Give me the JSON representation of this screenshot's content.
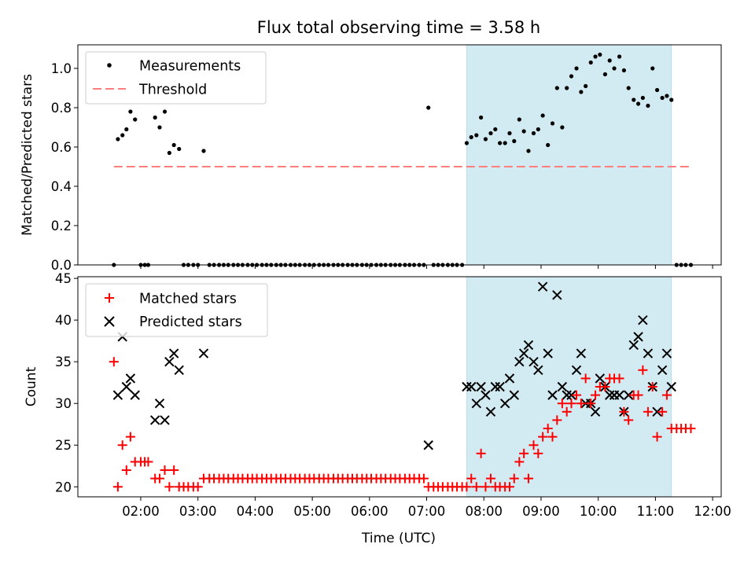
{
  "title": "Flux total observing time = 3.58 h",
  "colors": {
    "shade": "#add8e6",
    "matched": "#ff0000",
    "predicted": "#000000",
    "threshold": "#ff7f7f",
    "measure": "#000000"
  },
  "chart_data": [
    {
      "type": "scatter",
      "title": "Flux total observing time = 3.58 h",
      "xlabel": "",
      "ylabel": "Matched/Predicted stars",
      "ylim": [
        0,
        1.12
      ],
      "yticks": [
        "0.0",
        "0.2",
        "0.4",
        "0.6",
        "0.8",
        "1.0"
      ],
      "legend": [
        "Measurements",
        "Threshold"
      ],
      "legend_position": "upper left",
      "threshold": {
        "name": "Threshold",
        "value": 0.5,
        "x_range": [
          1.53,
          11.63
        ]
      },
      "shaded_region": [
        7.7,
        11.28
      ],
      "series": [
        {
          "name": "Measurements",
          "x": [
            1.53,
            1.6,
            1.68,
            1.75,
            1.82,
            1.9,
            2.0,
            2.07,
            2.13,
            2.25,
            2.33,
            2.42,
            2.5,
            2.58,
            2.67,
            2.75,
            2.83,
            2.92,
            3.0,
            3.1,
            3.2,
            3.28,
            3.37,
            3.45,
            3.53,
            3.62,
            3.7,
            3.78,
            3.87,
            3.95,
            4.03,
            4.12,
            4.2,
            4.28,
            4.37,
            4.45,
            4.53,
            4.62,
            4.7,
            4.78,
            4.87,
            4.95,
            5.03,
            5.12,
            5.2,
            5.28,
            5.37,
            5.45,
            5.53,
            5.62,
            5.7,
            5.78,
            5.87,
            5.95,
            6.03,
            6.12,
            6.2,
            6.28,
            6.37,
            6.45,
            6.53,
            6.62,
            6.7,
            6.78,
            6.87,
            6.95,
            7.03,
            7.12,
            7.2,
            7.28,
            7.37,
            7.45,
            7.53,
            7.62,
            7.7,
            7.78,
            7.87,
            7.95,
            8.03,
            8.12,
            8.2,
            8.28,
            8.37,
            8.45,
            8.53,
            8.62,
            8.7,
            8.78,
            8.87,
            8.95,
            9.03,
            9.12,
            9.2,
            9.28,
            9.37,
            9.45,
            9.53,
            9.62,
            9.7,
            9.78,
            9.87,
            9.95,
            10.03,
            10.12,
            10.2,
            10.28,
            10.37,
            10.45,
            10.53,
            10.62,
            10.7,
            10.78,
            10.87,
            10.95,
            11.03,
            11.12,
            11.2,
            11.28,
            11.37,
            11.45,
            11.53,
            11.62
          ],
          "y": [
            0.0,
            0.64,
            0.66,
            0.69,
            0.78,
            0.74,
            0.0,
            0.0,
            0.0,
            0.75,
            0.7,
            0.78,
            0.57,
            0.61,
            0.59,
            0.0,
            0.0,
            0.0,
            0.0,
            0.58,
            0.0,
            0.0,
            0.0,
            0.0,
            0.0,
            0.0,
            0.0,
            0.0,
            0.0,
            0.0,
            0.0,
            0.0,
            0.0,
            0.0,
            0.0,
            0.0,
            0.0,
            0.0,
            0.0,
            0.0,
            0.0,
            0.0,
            0.0,
            0.0,
            0.0,
            0.0,
            0.0,
            0.0,
            0.0,
            0.0,
            0.0,
            0.0,
            0.0,
            0.0,
            0.0,
            0.0,
            0.0,
            0.0,
            0.0,
            0.0,
            0.0,
            0.0,
            0.0,
            0.0,
            0.0,
            0.0,
            0.8,
            0.0,
            0.0,
            0.0,
            0.0,
            0.0,
            0.0,
            0.0,
            0.62,
            0.65,
            0.66,
            0.75,
            0.64,
            0.67,
            0.69,
            0.62,
            0.62,
            0.67,
            0.63,
            0.74,
            0.68,
            0.58,
            0.67,
            0.69,
            0.76,
            0.61,
            0.72,
            0.9,
            0.7,
            0.9,
            0.96,
            1.0,
            0.88,
            0.91,
            1.03,
            1.06,
            1.07,
            0.97,
            1.04,
            1.0,
            1.06,
            0.99,
            0.9,
            0.84,
            0.82,
            0.85,
            0.81,
            1.0,
            0.89,
            0.85,
            0.86,
            0.84,
            0.0,
            0.0,
            0.0,
            0.0
          ]
        }
      ]
    },
    {
      "type": "scatter",
      "title": "",
      "xlabel": "Time (UTC)",
      "ylabel": "Count",
      "ylim": [
        18.8,
        45.2
      ],
      "yticks": [
        "20",
        "25",
        "30",
        "35",
        "40",
        "45"
      ],
      "xticks": [
        "02:00",
        "03:00",
        "04:00",
        "05:00",
        "06:00",
        "07:00",
        "08:00",
        "09:00",
        "10:00",
        "11:00",
        "12:00"
      ],
      "legend": [
        "Matched stars",
        "Predicted stars"
      ],
      "legend_position": "upper left",
      "shaded_region": [
        7.7,
        11.28
      ],
      "series": [
        {
          "name": "Matched stars",
          "x": [
            1.53,
            1.6,
            1.68,
            1.75,
            1.82,
            1.9,
            2.0,
            2.07,
            2.13,
            2.25,
            2.33,
            2.42,
            2.5,
            2.58,
            2.67,
            2.75,
            2.83,
            2.92,
            3.0,
            3.1,
            3.2,
            3.28,
            3.37,
            3.45,
            3.53,
            3.62,
            3.7,
            3.78,
            3.87,
            3.95,
            4.03,
            4.12,
            4.2,
            4.28,
            4.37,
            4.45,
            4.53,
            4.62,
            4.7,
            4.78,
            4.87,
            4.95,
            5.03,
            5.12,
            5.2,
            5.28,
            5.37,
            5.45,
            5.53,
            5.62,
            5.7,
            5.78,
            5.87,
            5.95,
            6.03,
            6.12,
            6.2,
            6.28,
            6.37,
            6.45,
            6.53,
            6.62,
            6.7,
            6.78,
            6.87,
            6.95,
            7.03,
            7.12,
            7.2,
            7.28,
            7.37,
            7.45,
            7.53,
            7.62,
            7.7,
            7.78,
            7.87,
            7.95,
            8.03,
            8.12,
            8.2,
            8.28,
            8.37,
            8.45,
            8.53,
            8.62,
            8.7,
            8.78,
            8.87,
            8.95,
            9.03,
            9.12,
            9.2,
            9.28,
            9.37,
            9.45,
            9.53,
            9.62,
            9.7,
            9.78,
            9.87,
            9.95,
            10.03,
            10.12,
            10.2,
            10.28,
            10.37,
            10.45,
            10.53,
            10.62,
            10.7,
            10.78,
            10.87,
            10.95,
            11.03,
            11.12,
            11.2,
            11.28,
            11.37,
            11.45,
            11.53,
            11.62
          ],
          "y": [
            35,
            20,
            25,
            22,
            26,
            23,
            23,
            23,
            23,
            21,
            21,
            22,
            20,
            22,
            20,
            20,
            20,
            20,
            20,
            21,
            21,
            21,
            21,
            21,
            21,
            21,
            21,
            21,
            21,
            21,
            21,
            21,
            21,
            21,
            21,
            21,
            21,
            21,
            21,
            21,
            21,
            21,
            21,
            21,
            21,
            21,
            21,
            21,
            21,
            21,
            21,
            21,
            21,
            21,
            21,
            21,
            21,
            21,
            21,
            21,
            21,
            21,
            21,
            21,
            21,
            21,
            20,
            20,
            20,
            20,
            20,
            20,
            20,
            20,
            20,
            21,
            20,
            24,
            20,
            21,
            20,
            20,
            20,
            20,
            21,
            23,
            24,
            21,
            25,
            24,
            26,
            27,
            26,
            28,
            30,
            29,
            30,
            31,
            30,
            33,
            30,
            31,
            32,
            32,
            33,
            33,
            33,
            29,
            28,
            31,
            31,
            34,
            29,
            32,
            26,
            29,
            31,
            27,
            27,
            27,
            27,
            27
          ]
        },
        {
          "name": "Predicted stars",
          "x": [
            1.6,
            1.68,
            1.75,
            1.82,
            1.9,
            2.25,
            2.33,
            2.42,
            2.5,
            2.58,
            2.67,
            3.1,
            7.03,
            7.7,
            7.78,
            7.87,
            7.95,
            8.03,
            8.12,
            8.2,
            8.28,
            8.37,
            8.45,
            8.53,
            8.62,
            8.7,
            8.78,
            8.87,
            8.95,
            9.03,
            9.12,
            9.2,
            9.28,
            9.37,
            9.45,
            9.53,
            9.62,
            9.7,
            9.78,
            9.87,
            9.95,
            10.03,
            10.12,
            10.2,
            10.28,
            10.37,
            10.45,
            10.53,
            10.62,
            10.7,
            10.78,
            10.87,
            10.95,
            11.03,
            11.12,
            11.2,
            11.28
          ],
          "y": [
            31,
            38,
            32,
            33,
            31,
            28,
            30,
            28,
            35,
            36,
            34,
            36,
            25,
            32,
            32,
            30,
            32,
            31,
            29,
            32,
            32,
            30,
            33,
            31,
            35,
            36,
            37,
            35,
            34,
            44,
            36,
            31,
            43,
            32,
            31,
            31,
            34,
            36,
            30,
            30,
            29,
            33,
            32,
            31,
            31,
            31,
            29,
            31,
            37,
            38,
            40,
            36,
            32,
            29,
            34,
            36,
            32
          ]
        }
      ]
    }
  ]
}
